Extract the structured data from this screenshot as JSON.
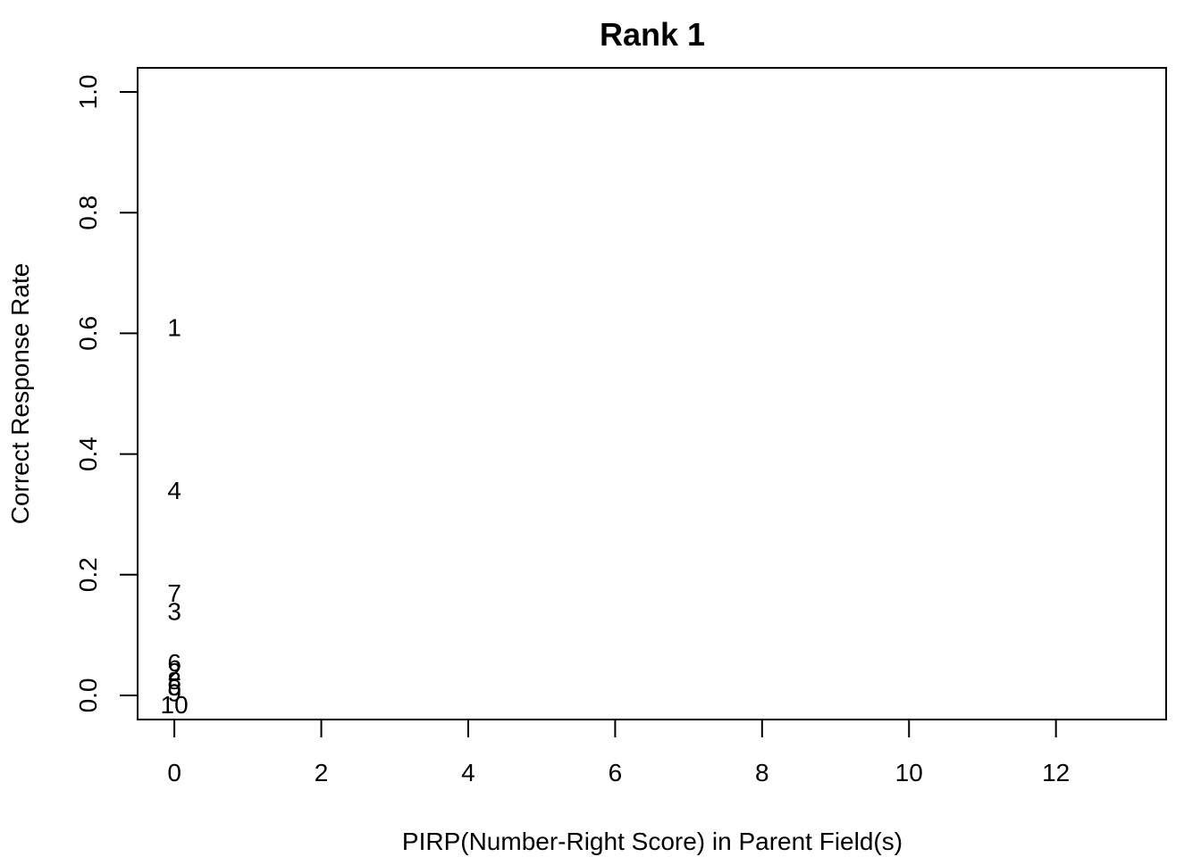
{
  "chart_data": {
    "type": "scatter",
    "title": "Rank 1",
    "xlabel": "PIRP(Number-Right Score) in Parent Field(s)",
    "ylabel": "Correct Response Rate",
    "xlim": [
      -0.5,
      13.5
    ],
    "ylim": [
      -0.04,
      1.04
    ],
    "x_ticks": [
      "0",
      "2",
      "4",
      "6",
      "8",
      "10",
      "12"
    ],
    "y_ticks": [
      "0.0",
      "0.2",
      "0.4",
      "0.6",
      "0.8",
      "1.0"
    ],
    "grid": false,
    "marker": "text labels",
    "points": [
      {
        "label": "1",
        "x": 0,
        "y": 0.61
      },
      {
        "label": "4",
        "x": 0,
        "y": 0.34
      },
      {
        "label": "7",
        "x": 0,
        "y": 0.17
      },
      {
        "label": "3",
        "x": 0,
        "y": 0.14
      },
      {
        "label": "6",
        "x": 0,
        "y": 0.055
      },
      {
        "label": "2",
        "x": 0,
        "y": 0.04
      },
      {
        "label": "8",
        "x": 0,
        "y": 0.025
      },
      {
        "label": "5",
        "x": 0,
        "y": 0.015
      },
      {
        "label": "9",
        "x": 0,
        "y": 0.005
      },
      {
        "label": "10",
        "x": 0,
        "y": -0.015
      }
    ]
  }
}
